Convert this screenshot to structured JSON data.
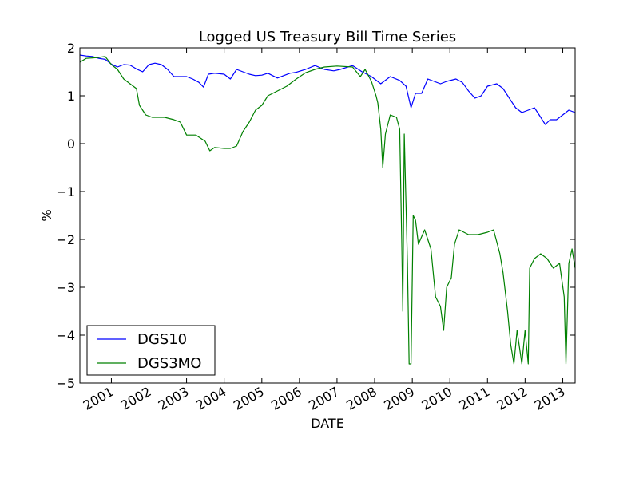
{
  "chart_data": {
    "type": "line",
    "title": "Logged US Treasury Bill Time Series",
    "xlabel": "DATE",
    "ylabel": "%",
    "xlim": [
      "2000-03-01",
      "2013-05-01"
    ],
    "ylim": [
      -5,
      2
    ],
    "yticks": [
      2,
      1,
      0,
      -1,
      -2,
      -3,
      -4,
      -5
    ],
    "ytick_labels": [
      "2",
      "1",
      "0",
      "−1",
      "−2",
      "−3",
      "−4",
      "−5"
    ],
    "xticks": [
      "2001",
      "2002",
      "2003",
      "2004",
      "2005",
      "2006",
      "2007",
      "2008",
      "2009",
      "2010",
      "2011",
      "2012",
      "2013"
    ],
    "grid": false,
    "legend_position": "lower-left",
    "series": [
      {
        "name": "DGS10",
        "color": "#0000ff",
        "points": [
          [
            "2000-03-01",
            1.85
          ],
          [
            "2000-05-01",
            1.83
          ],
          [
            "2000-07-01",
            1.82
          ],
          [
            "2000-09-01",
            1.78
          ],
          [
            "2000-11-01",
            1.76
          ],
          [
            "2001-01-01",
            1.66
          ],
          [
            "2001-03-01",
            1.6
          ],
          [
            "2001-05-01",
            1.65
          ],
          [
            "2001-07-01",
            1.64
          ],
          [
            "2001-09-01",
            1.56
          ],
          [
            "2001-11-01",
            1.5
          ],
          [
            "2002-01-01",
            1.65
          ],
          [
            "2002-03-01",
            1.68
          ],
          [
            "2002-05-01",
            1.65
          ],
          [
            "2002-07-01",
            1.55
          ],
          [
            "2002-09-01",
            1.4
          ],
          [
            "2002-11-01",
            1.4
          ],
          [
            "2003-01-01",
            1.4
          ],
          [
            "2003-03-01",
            1.35
          ],
          [
            "2003-05-01",
            1.28
          ],
          [
            "2003-06-15",
            1.18
          ],
          [
            "2003-08-01",
            1.45
          ],
          [
            "2003-10-01",
            1.47
          ],
          [
            "2004-01-01",
            1.45
          ],
          [
            "2004-03-01",
            1.35
          ],
          [
            "2004-05-01",
            1.55
          ],
          [
            "2004-07-01",
            1.5
          ],
          [
            "2004-09-01",
            1.45
          ],
          [
            "2004-11-01",
            1.42
          ],
          [
            "2005-01-01",
            1.43
          ],
          [
            "2005-03-01",
            1.47
          ],
          [
            "2005-06-01",
            1.37
          ],
          [
            "2005-08-01",
            1.42
          ],
          [
            "2005-10-01",
            1.47
          ],
          [
            "2005-12-01",
            1.49
          ],
          [
            "2006-03-01",
            1.55
          ],
          [
            "2006-06-01",
            1.63
          ],
          [
            "2006-09-01",
            1.55
          ],
          [
            "2006-12-01",
            1.52
          ],
          [
            "2007-02-01",
            1.55
          ],
          [
            "2007-06-01",
            1.63
          ],
          [
            "2007-09-01",
            1.5
          ],
          [
            "2007-12-01",
            1.4
          ],
          [
            "2008-03-01",
            1.25
          ],
          [
            "2008-06-01",
            1.4
          ],
          [
            "2008-09-01",
            1.32
          ],
          [
            "2008-11-01",
            1.2
          ],
          [
            "2008-12-20",
            0.75
          ],
          [
            "2009-02-01",
            1.05
          ],
          [
            "2009-04-01",
            1.05
          ],
          [
            "2009-06-01",
            1.35
          ],
          [
            "2009-08-01",
            1.3
          ],
          [
            "2009-10-01",
            1.25
          ],
          [
            "2009-12-01",
            1.3
          ],
          [
            "2010-03-01",
            1.35
          ],
          [
            "2010-05-01",
            1.28
          ],
          [
            "2010-07-01",
            1.1
          ],
          [
            "2010-09-01",
            0.95
          ],
          [
            "2010-11-01",
            1.0
          ],
          [
            "2011-01-01",
            1.2
          ],
          [
            "2011-04-01",
            1.25
          ],
          [
            "2011-06-01",
            1.15
          ],
          [
            "2011-08-01",
            0.95
          ],
          [
            "2011-10-01",
            0.75
          ],
          [
            "2011-12-01",
            0.65
          ],
          [
            "2012-02-01",
            0.7
          ],
          [
            "2012-04-01",
            0.75
          ],
          [
            "2012-06-01",
            0.55
          ],
          [
            "2012-07-15",
            0.4
          ],
          [
            "2012-09-01",
            0.5
          ],
          [
            "2012-11-01",
            0.5
          ],
          [
            "2013-01-01",
            0.6
          ],
          [
            "2013-03-01",
            0.7
          ],
          [
            "2013-05-01",
            0.65
          ]
        ]
      },
      {
        "name": "DGS3MO",
        "color": "#008000",
        "points": [
          [
            "2000-03-01",
            1.7
          ],
          [
            "2000-05-01",
            1.78
          ],
          [
            "2000-07-01",
            1.79
          ],
          [
            "2000-09-01",
            1.8
          ],
          [
            "2000-11-01",
            1.82
          ],
          [
            "2001-01-01",
            1.65
          ],
          [
            "2001-03-01",
            1.55
          ],
          [
            "2001-05-01",
            1.35
          ],
          [
            "2001-07-01",
            1.25
          ],
          [
            "2001-09-01",
            1.15
          ],
          [
            "2001-10-01",
            0.8
          ],
          [
            "2001-12-01",
            0.6
          ],
          [
            "2002-02-01",
            0.55
          ],
          [
            "2002-06-01",
            0.55
          ],
          [
            "2002-09-01",
            0.5
          ],
          [
            "2002-11-01",
            0.45
          ],
          [
            "2003-01-01",
            0.18
          ],
          [
            "2003-04-01",
            0.18
          ],
          [
            "2003-07-01",
            0.05
          ],
          [
            "2003-08-15",
            -0.15
          ],
          [
            "2003-10-01",
            -0.08
          ],
          [
            "2004-01-01",
            -0.1
          ],
          [
            "2004-03-01",
            -0.1
          ],
          [
            "2004-05-01",
            -0.05
          ],
          [
            "2004-07-01",
            0.25
          ],
          [
            "2004-09-01",
            0.45
          ],
          [
            "2004-11-01",
            0.7
          ],
          [
            "2005-01-01",
            0.8
          ],
          [
            "2005-03-01",
            1.0
          ],
          [
            "2005-06-01",
            1.1
          ],
          [
            "2005-09-01",
            1.2
          ],
          [
            "2005-12-01",
            1.35
          ],
          [
            "2006-03-01",
            1.48
          ],
          [
            "2006-06-01",
            1.55
          ],
          [
            "2006-09-01",
            1.6
          ],
          [
            "2007-01-01",
            1.62
          ],
          [
            "2007-06-01",
            1.6
          ],
          [
            "2007-08-15",
            1.4
          ],
          [
            "2007-10-01",
            1.55
          ],
          [
            "2007-12-01",
            1.3
          ],
          [
            "2008-01-15",
            1.0
          ],
          [
            "2008-02-01",
            0.85
          ],
          [
            "2008-03-01",
            0.3
          ],
          [
            "2008-03-20",
            -0.5
          ],
          [
            "2008-04-15",
            0.2
          ],
          [
            "2008-06-01",
            0.6
          ],
          [
            "2008-08-01",
            0.55
          ],
          [
            "2008-09-01",
            0.3
          ],
          [
            "2008-09-20",
            -2.0
          ],
          [
            "2008-10-01",
            -3.5
          ],
          [
            "2008-10-15",
            0.2
          ],
          [
            "2008-11-15",
            -2.5
          ],
          [
            "2008-12-01",
            -4.6
          ],
          [
            "2008-12-20",
            -4.6
          ],
          [
            "2009-01-10",
            -1.5
          ],
          [
            "2009-02-01",
            -1.6
          ],
          [
            "2009-03-01",
            -2.1
          ],
          [
            "2009-05-01",
            -1.8
          ],
          [
            "2009-07-01",
            -2.2
          ],
          [
            "2009-08-15",
            -3.2
          ],
          [
            "2009-10-01",
            -3.4
          ],
          [
            "2009-11-01",
            -3.9
          ],
          [
            "2009-12-01",
            -3.0
          ],
          [
            "2010-01-15",
            -2.8
          ],
          [
            "2010-02-15",
            -2.1
          ],
          [
            "2010-04-01",
            -1.8
          ],
          [
            "2010-07-01",
            -1.9
          ],
          [
            "2010-10-01",
            -1.9
          ],
          [
            "2011-01-01",
            -1.85
          ],
          [
            "2011-03-01",
            -1.8
          ],
          [
            "2011-05-01",
            -2.3
          ],
          [
            "2011-06-01",
            -2.7
          ],
          [
            "2011-07-15",
            -3.5
          ],
          [
            "2011-08-15",
            -4.2
          ],
          [
            "2011-09-15",
            -4.6
          ],
          [
            "2011-10-15",
            -3.9
          ],
          [
            "2011-12-01",
            -4.6
          ],
          [
            "2012-01-01",
            -3.9
          ],
          [
            "2012-02-01",
            -4.6
          ],
          [
            "2012-02-15",
            -2.6
          ],
          [
            "2012-04-01",
            -2.4
          ],
          [
            "2012-06-01",
            -2.3
          ],
          [
            "2012-08-01",
            -2.4
          ],
          [
            "2012-10-01",
            -2.6
          ],
          [
            "2012-12-01",
            -2.5
          ],
          [
            "2013-01-15",
            -3.2
          ],
          [
            "2013-02-01",
            -4.6
          ],
          [
            "2013-03-01",
            -2.5
          ],
          [
            "2013-04-01",
            -2.2
          ],
          [
            "2013-05-01",
            -2.6
          ]
        ]
      }
    ]
  }
}
